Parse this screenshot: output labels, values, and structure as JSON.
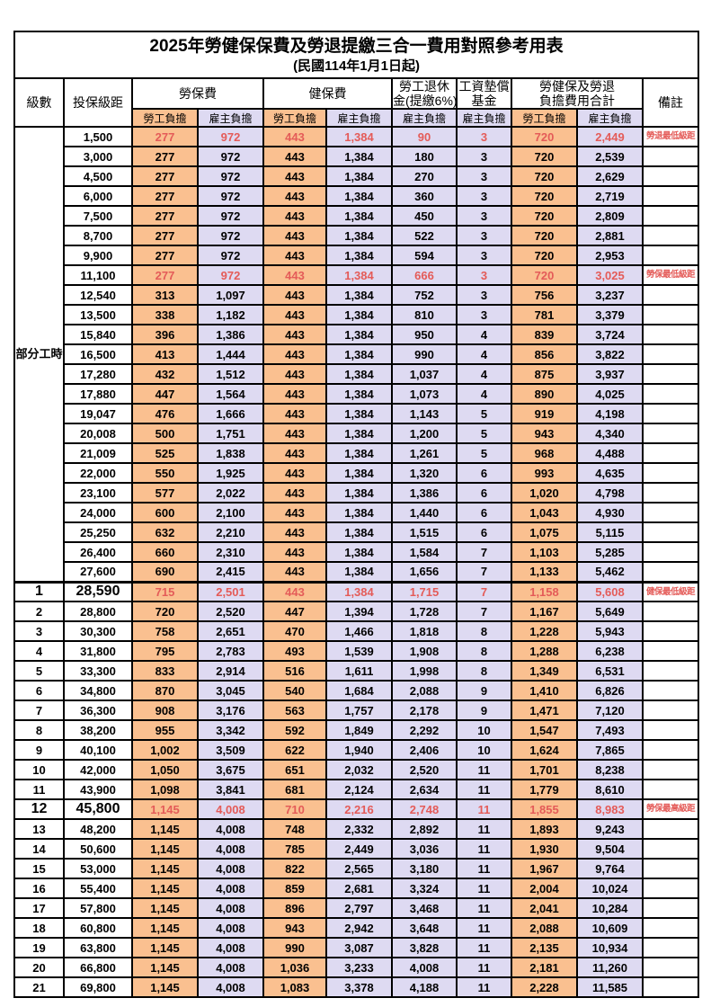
{
  "doc": {
    "title": "2025年勞健保保費及勞退提繳三合一費用對照參考用表",
    "subtitle": "(民國114年1月1日起)"
  },
  "header": {
    "level": "級數",
    "bracket": "投保級距",
    "labor_ins": "勞保費",
    "health_ins": "健保費",
    "pension_line1": "勞工退休",
    "pension_line2": "金(提繳6%)",
    "wage_fund_line1": "工資墊償",
    "wage_fund_line2": "基金",
    "total_line1": "勞健保及勞退",
    "total_line2": "負擔費用合計",
    "remark": "備註",
    "employee": "勞工負擔",
    "employer": "雇主負擔"
  },
  "colors": {
    "employee_bg": "#fac090",
    "employer_bg": "#dedaf2",
    "highlight_text": "#e45b58",
    "border": "#000000"
  },
  "part_time": {
    "label": "部分工時",
    "span": 23
  },
  "columns": [
    "labor-employee",
    "labor-employer",
    "health-employee",
    "health-employer",
    "pension-employer",
    "wage-fund-employer",
    "total-employee",
    "total-employer"
  ],
  "rows": [
    {
      "lv": "",
      "amt": "1,500",
      "v": [
        "277",
        "972",
        "443",
        "1,384",
        "90",
        "3",
        "720",
        "2,449"
      ],
      "rm": "勞退最低級距",
      "hl": true
    },
    {
      "lv": "",
      "amt": "3,000",
      "v": [
        "277",
        "972",
        "443",
        "1,384",
        "180",
        "3",
        "720",
        "2,539"
      ],
      "rm": ""
    },
    {
      "lv": "",
      "amt": "4,500",
      "v": [
        "277",
        "972",
        "443",
        "1,384",
        "270",
        "3",
        "720",
        "2,629"
      ],
      "rm": ""
    },
    {
      "lv": "",
      "amt": "6,000",
      "v": [
        "277",
        "972",
        "443",
        "1,384",
        "360",
        "3",
        "720",
        "2,719"
      ],
      "rm": ""
    },
    {
      "lv": "",
      "amt": "7,500",
      "v": [
        "277",
        "972",
        "443",
        "1,384",
        "450",
        "3",
        "720",
        "2,809"
      ],
      "rm": ""
    },
    {
      "lv": "",
      "amt": "8,700",
      "v": [
        "277",
        "972",
        "443",
        "1,384",
        "522",
        "3",
        "720",
        "2,881"
      ],
      "rm": ""
    },
    {
      "lv": "",
      "amt": "9,900",
      "v": [
        "277",
        "972",
        "443",
        "1,384",
        "594",
        "3",
        "720",
        "2,953"
      ],
      "rm": ""
    },
    {
      "lv": "",
      "amt": "11,100",
      "v": [
        "277",
        "972",
        "443",
        "1,384",
        "666",
        "3",
        "720",
        "3,025"
      ],
      "rm": "勞保最低級距",
      "hl": true
    },
    {
      "lv": "",
      "amt": "12,540",
      "v": [
        "313",
        "1,097",
        "443",
        "1,384",
        "752",
        "3",
        "756",
        "3,237"
      ],
      "rm": ""
    },
    {
      "lv": "",
      "amt": "13,500",
      "v": [
        "338",
        "1,182",
        "443",
        "1,384",
        "810",
        "3",
        "781",
        "3,379"
      ],
      "rm": ""
    },
    {
      "lv": "",
      "amt": "15,840",
      "v": [
        "396",
        "1,386",
        "443",
        "1,384",
        "950",
        "4",
        "839",
        "3,724"
      ],
      "rm": ""
    },
    {
      "lv": "",
      "amt": "16,500",
      "v": [
        "413",
        "1,444",
        "443",
        "1,384",
        "990",
        "4",
        "856",
        "3,822"
      ],
      "rm": ""
    },
    {
      "lv": "",
      "amt": "17,280",
      "v": [
        "432",
        "1,512",
        "443",
        "1,384",
        "1,037",
        "4",
        "875",
        "3,937"
      ],
      "rm": ""
    },
    {
      "lv": "",
      "amt": "17,880",
      "v": [
        "447",
        "1,564",
        "443",
        "1,384",
        "1,073",
        "4",
        "890",
        "4,025"
      ],
      "rm": ""
    },
    {
      "lv": "",
      "amt": "19,047",
      "v": [
        "476",
        "1,666",
        "443",
        "1,384",
        "1,143",
        "5",
        "919",
        "4,198"
      ],
      "rm": ""
    },
    {
      "lv": "",
      "amt": "20,008",
      "v": [
        "500",
        "1,751",
        "443",
        "1,384",
        "1,200",
        "5",
        "943",
        "4,340"
      ],
      "rm": ""
    },
    {
      "lv": "",
      "amt": "21,009",
      "v": [
        "525",
        "1,838",
        "443",
        "1,384",
        "1,261",
        "5",
        "968",
        "4,488"
      ],
      "rm": ""
    },
    {
      "lv": "",
      "amt": "22,000",
      "v": [
        "550",
        "1,925",
        "443",
        "1,384",
        "1,320",
        "6",
        "993",
        "4,635"
      ],
      "rm": ""
    },
    {
      "lv": "",
      "amt": "23,100",
      "v": [
        "577",
        "2,022",
        "443",
        "1,384",
        "1,386",
        "6",
        "1,020",
        "4,798"
      ],
      "rm": ""
    },
    {
      "lv": "",
      "amt": "24,000",
      "v": [
        "600",
        "2,100",
        "443",
        "1,384",
        "1,440",
        "6",
        "1,043",
        "4,930"
      ],
      "rm": ""
    },
    {
      "lv": "",
      "amt": "25,250",
      "v": [
        "632",
        "2,210",
        "443",
        "1,384",
        "1,515",
        "6",
        "1,075",
        "5,115"
      ],
      "rm": ""
    },
    {
      "lv": "",
      "amt": "26,400",
      "v": [
        "660",
        "2,310",
        "443",
        "1,384",
        "1,584",
        "7",
        "1,103",
        "5,285"
      ],
      "rm": ""
    },
    {
      "lv": "",
      "amt": "27,600",
      "v": [
        "690",
        "2,415",
        "443",
        "1,384",
        "1,656",
        "7",
        "1,133",
        "5,462"
      ],
      "rm": ""
    },
    {
      "lv": "1",
      "amt": "28,590",
      "v": [
        "715",
        "2,501",
        "443",
        "1,384",
        "1,715",
        "7",
        "1,158",
        "5,608"
      ],
      "rm": "健保最低級距",
      "hl": true,
      "big": true,
      "sep": true
    },
    {
      "lv": "2",
      "amt": "28,800",
      "v": [
        "720",
        "2,520",
        "447",
        "1,394",
        "1,728",
        "7",
        "1,167",
        "5,649"
      ],
      "rm": ""
    },
    {
      "lv": "3",
      "amt": "30,300",
      "v": [
        "758",
        "2,651",
        "470",
        "1,466",
        "1,818",
        "8",
        "1,228",
        "5,943"
      ],
      "rm": ""
    },
    {
      "lv": "4",
      "amt": "31,800",
      "v": [
        "795",
        "2,783",
        "493",
        "1,539",
        "1,908",
        "8",
        "1,288",
        "6,238"
      ],
      "rm": ""
    },
    {
      "lv": "5",
      "amt": "33,300",
      "v": [
        "833",
        "2,914",
        "516",
        "1,611",
        "1,998",
        "8",
        "1,349",
        "6,531"
      ],
      "rm": ""
    },
    {
      "lv": "6",
      "amt": "34,800",
      "v": [
        "870",
        "3,045",
        "540",
        "1,684",
        "2,088",
        "9",
        "1,410",
        "6,826"
      ],
      "rm": ""
    },
    {
      "lv": "7",
      "amt": "36,300",
      "v": [
        "908",
        "3,176",
        "563",
        "1,757",
        "2,178",
        "9",
        "1,471",
        "7,120"
      ],
      "rm": ""
    },
    {
      "lv": "8",
      "amt": "38,200",
      "v": [
        "955",
        "3,342",
        "592",
        "1,849",
        "2,292",
        "10",
        "1,547",
        "7,493"
      ],
      "rm": ""
    },
    {
      "lv": "9",
      "amt": "40,100",
      "v": [
        "1,002",
        "3,509",
        "622",
        "1,940",
        "2,406",
        "10",
        "1,624",
        "7,865"
      ],
      "rm": ""
    },
    {
      "lv": "10",
      "amt": "42,000",
      "v": [
        "1,050",
        "3,675",
        "651",
        "2,032",
        "2,520",
        "11",
        "1,701",
        "8,238"
      ],
      "rm": ""
    },
    {
      "lv": "11",
      "amt": "43,900",
      "v": [
        "1,098",
        "3,841",
        "681",
        "2,124",
        "2,634",
        "11",
        "1,779",
        "8,610"
      ],
      "rm": ""
    },
    {
      "lv": "12",
      "amt": "45,800",
      "v": [
        "1,145",
        "4,008",
        "710",
        "2,216",
        "2,748",
        "11",
        "1,855",
        "8,983"
      ],
      "rm": "勞保最高級距",
      "hl": true,
      "big": true
    },
    {
      "lv": "13",
      "amt": "48,200",
      "v": [
        "1,145",
        "4,008",
        "748",
        "2,332",
        "2,892",
        "11",
        "1,893",
        "9,243"
      ],
      "rm": ""
    },
    {
      "lv": "14",
      "amt": "50,600",
      "v": [
        "1,145",
        "4,008",
        "785",
        "2,449",
        "3,036",
        "11",
        "1,930",
        "9,504"
      ],
      "rm": ""
    },
    {
      "lv": "15",
      "amt": "53,000",
      "v": [
        "1,145",
        "4,008",
        "822",
        "2,565",
        "3,180",
        "11",
        "1,967",
        "9,764"
      ],
      "rm": ""
    },
    {
      "lv": "16",
      "amt": "55,400",
      "v": [
        "1,145",
        "4,008",
        "859",
        "2,681",
        "3,324",
        "11",
        "2,004",
        "10,024"
      ],
      "rm": ""
    },
    {
      "lv": "17",
      "amt": "57,800",
      "v": [
        "1,145",
        "4,008",
        "896",
        "2,797",
        "3,468",
        "11",
        "2,041",
        "10,284"
      ],
      "rm": ""
    },
    {
      "lv": "18",
      "amt": "60,800",
      "v": [
        "1,145",
        "4,008",
        "943",
        "2,942",
        "3,648",
        "11",
        "2,088",
        "10,609"
      ],
      "rm": ""
    },
    {
      "lv": "19",
      "amt": "63,800",
      "v": [
        "1,145",
        "4,008",
        "990",
        "3,087",
        "3,828",
        "11",
        "2,135",
        "10,934"
      ],
      "rm": ""
    },
    {
      "lv": "20",
      "amt": "66,800",
      "v": [
        "1,145",
        "4,008",
        "1,036",
        "3,233",
        "4,008",
        "11",
        "2,181",
        "11,260"
      ],
      "rm": ""
    },
    {
      "lv": "21",
      "amt": "69,800",
      "v": [
        "1,145",
        "4,008",
        "1,083",
        "3,378",
        "4,188",
        "11",
        "2,228",
        "11,585"
      ],
      "rm": ""
    }
  ]
}
